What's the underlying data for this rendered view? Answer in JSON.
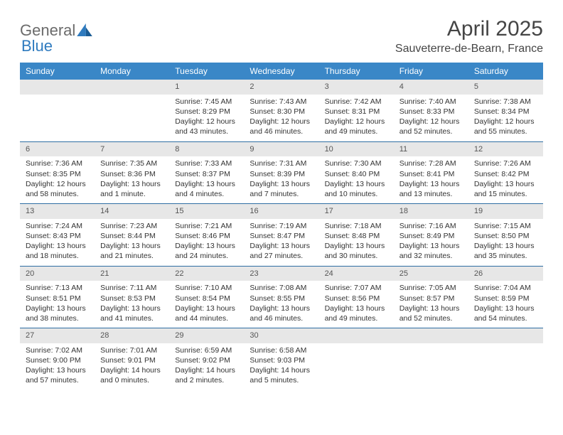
{
  "brand": {
    "part1": "General",
    "part2": "Blue"
  },
  "title": "April 2025",
  "location": "Sauveterre-de-Bearn, France",
  "colors": {
    "header_bg": "#3a87c7",
    "header_text": "#ffffff",
    "daynum_bg": "#e7e7e7",
    "week_border": "#2f6ea3",
    "logo_gray": "#6b6b6b",
    "logo_blue": "#2f7bbf"
  },
  "day_headers": [
    "Sunday",
    "Monday",
    "Tuesday",
    "Wednesday",
    "Thursday",
    "Friday",
    "Saturday"
  ],
  "weeks": [
    [
      {
        "n": "",
        "sr": "",
        "ss": "",
        "dl": ""
      },
      {
        "n": "",
        "sr": "",
        "ss": "",
        "dl": ""
      },
      {
        "n": "1",
        "sr": "Sunrise: 7:45 AM",
        "ss": "Sunset: 8:29 PM",
        "dl": "Daylight: 12 hours and 43 minutes."
      },
      {
        "n": "2",
        "sr": "Sunrise: 7:43 AM",
        "ss": "Sunset: 8:30 PM",
        "dl": "Daylight: 12 hours and 46 minutes."
      },
      {
        "n": "3",
        "sr": "Sunrise: 7:42 AM",
        "ss": "Sunset: 8:31 PM",
        "dl": "Daylight: 12 hours and 49 minutes."
      },
      {
        "n": "4",
        "sr": "Sunrise: 7:40 AM",
        "ss": "Sunset: 8:33 PM",
        "dl": "Daylight: 12 hours and 52 minutes."
      },
      {
        "n": "5",
        "sr": "Sunrise: 7:38 AM",
        "ss": "Sunset: 8:34 PM",
        "dl": "Daylight: 12 hours and 55 minutes."
      }
    ],
    [
      {
        "n": "6",
        "sr": "Sunrise: 7:36 AM",
        "ss": "Sunset: 8:35 PM",
        "dl": "Daylight: 12 hours and 58 minutes."
      },
      {
        "n": "7",
        "sr": "Sunrise: 7:35 AM",
        "ss": "Sunset: 8:36 PM",
        "dl": "Daylight: 13 hours and 1 minute."
      },
      {
        "n": "8",
        "sr": "Sunrise: 7:33 AM",
        "ss": "Sunset: 8:37 PM",
        "dl": "Daylight: 13 hours and 4 minutes."
      },
      {
        "n": "9",
        "sr": "Sunrise: 7:31 AM",
        "ss": "Sunset: 8:39 PM",
        "dl": "Daylight: 13 hours and 7 minutes."
      },
      {
        "n": "10",
        "sr": "Sunrise: 7:30 AM",
        "ss": "Sunset: 8:40 PM",
        "dl": "Daylight: 13 hours and 10 minutes."
      },
      {
        "n": "11",
        "sr": "Sunrise: 7:28 AM",
        "ss": "Sunset: 8:41 PM",
        "dl": "Daylight: 13 hours and 13 minutes."
      },
      {
        "n": "12",
        "sr": "Sunrise: 7:26 AM",
        "ss": "Sunset: 8:42 PM",
        "dl": "Daylight: 13 hours and 15 minutes."
      }
    ],
    [
      {
        "n": "13",
        "sr": "Sunrise: 7:24 AM",
        "ss": "Sunset: 8:43 PM",
        "dl": "Daylight: 13 hours and 18 minutes."
      },
      {
        "n": "14",
        "sr": "Sunrise: 7:23 AM",
        "ss": "Sunset: 8:44 PM",
        "dl": "Daylight: 13 hours and 21 minutes."
      },
      {
        "n": "15",
        "sr": "Sunrise: 7:21 AM",
        "ss": "Sunset: 8:46 PM",
        "dl": "Daylight: 13 hours and 24 minutes."
      },
      {
        "n": "16",
        "sr": "Sunrise: 7:19 AM",
        "ss": "Sunset: 8:47 PM",
        "dl": "Daylight: 13 hours and 27 minutes."
      },
      {
        "n": "17",
        "sr": "Sunrise: 7:18 AM",
        "ss": "Sunset: 8:48 PM",
        "dl": "Daylight: 13 hours and 30 minutes."
      },
      {
        "n": "18",
        "sr": "Sunrise: 7:16 AM",
        "ss": "Sunset: 8:49 PM",
        "dl": "Daylight: 13 hours and 32 minutes."
      },
      {
        "n": "19",
        "sr": "Sunrise: 7:15 AM",
        "ss": "Sunset: 8:50 PM",
        "dl": "Daylight: 13 hours and 35 minutes."
      }
    ],
    [
      {
        "n": "20",
        "sr": "Sunrise: 7:13 AM",
        "ss": "Sunset: 8:51 PM",
        "dl": "Daylight: 13 hours and 38 minutes."
      },
      {
        "n": "21",
        "sr": "Sunrise: 7:11 AM",
        "ss": "Sunset: 8:53 PM",
        "dl": "Daylight: 13 hours and 41 minutes."
      },
      {
        "n": "22",
        "sr": "Sunrise: 7:10 AM",
        "ss": "Sunset: 8:54 PM",
        "dl": "Daylight: 13 hours and 44 minutes."
      },
      {
        "n": "23",
        "sr": "Sunrise: 7:08 AM",
        "ss": "Sunset: 8:55 PM",
        "dl": "Daylight: 13 hours and 46 minutes."
      },
      {
        "n": "24",
        "sr": "Sunrise: 7:07 AM",
        "ss": "Sunset: 8:56 PM",
        "dl": "Daylight: 13 hours and 49 minutes."
      },
      {
        "n": "25",
        "sr": "Sunrise: 7:05 AM",
        "ss": "Sunset: 8:57 PM",
        "dl": "Daylight: 13 hours and 52 minutes."
      },
      {
        "n": "26",
        "sr": "Sunrise: 7:04 AM",
        "ss": "Sunset: 8:59 PM",
        "dl": "Daylight: 13 hours and 54 minutes."
      }
    ],
    [
      {
        "n": "27",
        "sr": "Sunrise: 7:02 AM",
        "ss": "Sunset: 9:00 PM",
        "dl": "Daylight: 13 hours and 57 minutes."
      },
      {
        "n": "28",
        "sr": "Sunrise: 7:01 AM",
        "ss": "Sunset: 9:01 PM",
        "dl": "Daylight: 14 hours and 0 minutes."
      },
      {
        "n": "29",
        "sr": "Sunrise: 6:59 AM",
        "ss": "Sunset: 9:02 PM",
        "dl": "Daylight: 14 hours and 2 minutes."
      },
      {
        "n": "30",
        "sr": "Sunrise: 6:58 AM",
        "ss": "Sunset: 9:03 PM",
        "dl": "Daylight: 14 hours and 5 minutes."
      },
      {
        "n": "",
        "sr": "",
        "ss": "",
        "dl": ""
      },
      {
        "n": "",
        "sr": "",
        "ss": "",
        "dl": ""
      },
      {
        "n": "",
        "sr": "",
        "ss": "",
        "dl": ""
      }
    ]
  ]
}
